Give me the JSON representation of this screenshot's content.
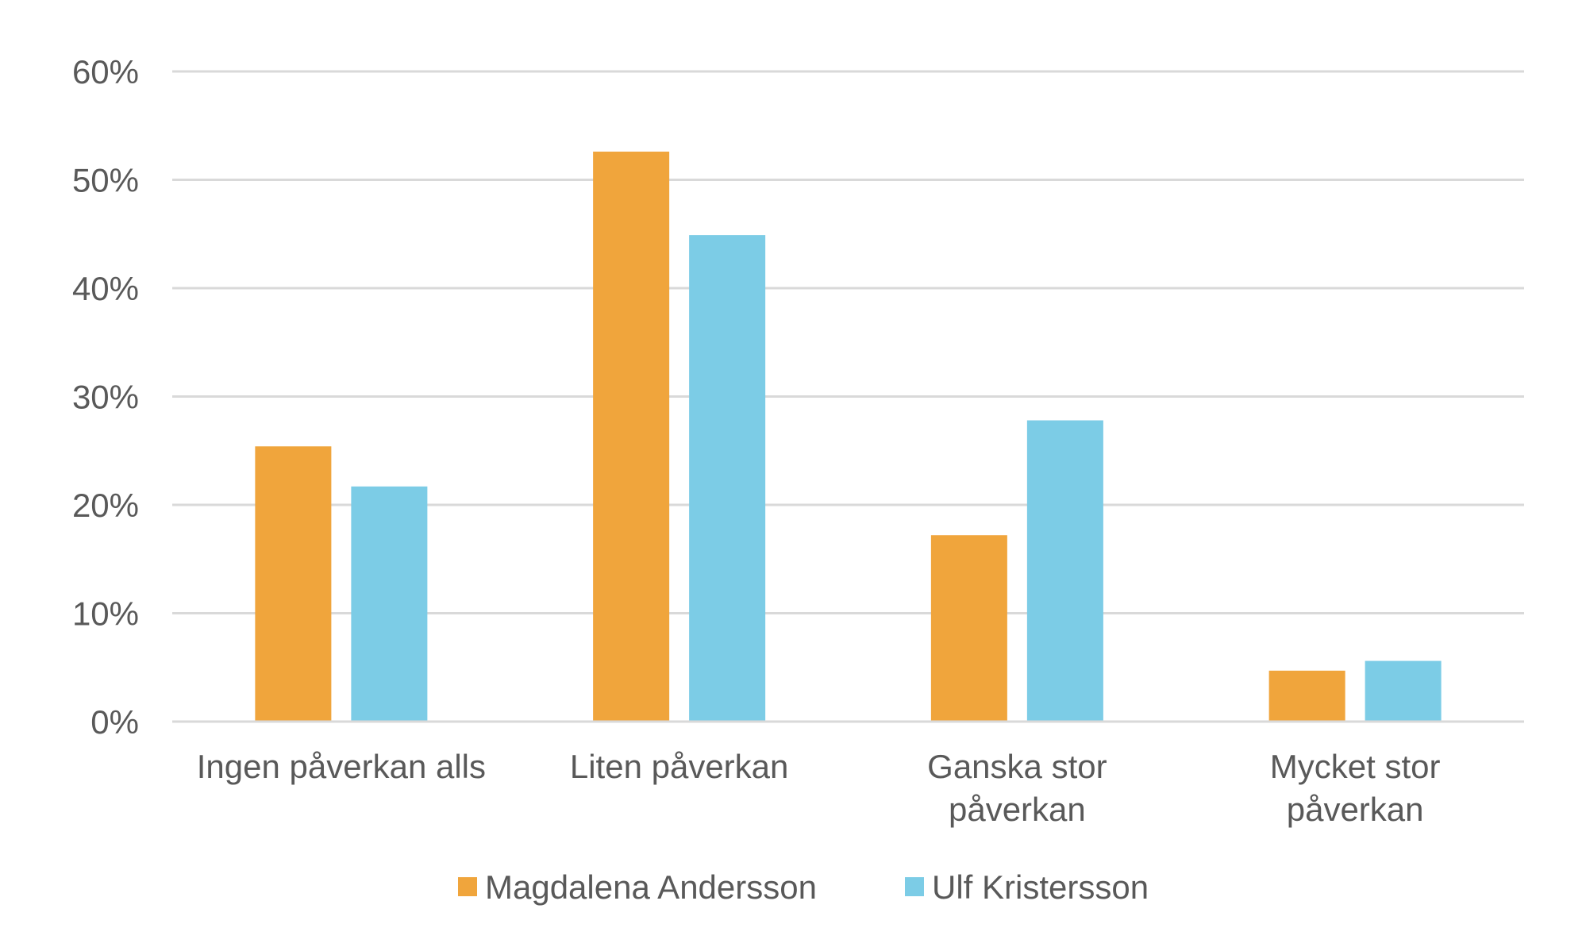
{
  "chart_data": {
    "type": "bar",
    "categories": [
      [
        "Ingen påverkan alls"
      ],
      [
        "Liten påverkan"
      ],
      [
        "Ganska stor",
        "påverkan"
      ],
      [
        "Mycket stor",
        "påverkan"
      ]
    ],
    "series": [
      {
        "name": "Magdalena Andersson",
        "color": "#F0A53C",
        "values": [
          25.4,
          52.6,
          17.2,
          4.7
        ]
      },
      {
        "name": "Ulf Kristersson",
        "color": "#7CCCE6",
        "values": [
          21.7,
          44.9,
          27.8,
          5.6
        ]
      }
    ],
    "ylim": [
      0,
      60
    ],
    "yticks": [
      0,
      10,
      20,
      30,
      40,
      50,
      60
    ],
    "ytick_suffix": "%",
    "grid": true,
    "legend": "bottom",
    "title": "",
    "xlabel": "",
    "ylabel": ""
  }
}
